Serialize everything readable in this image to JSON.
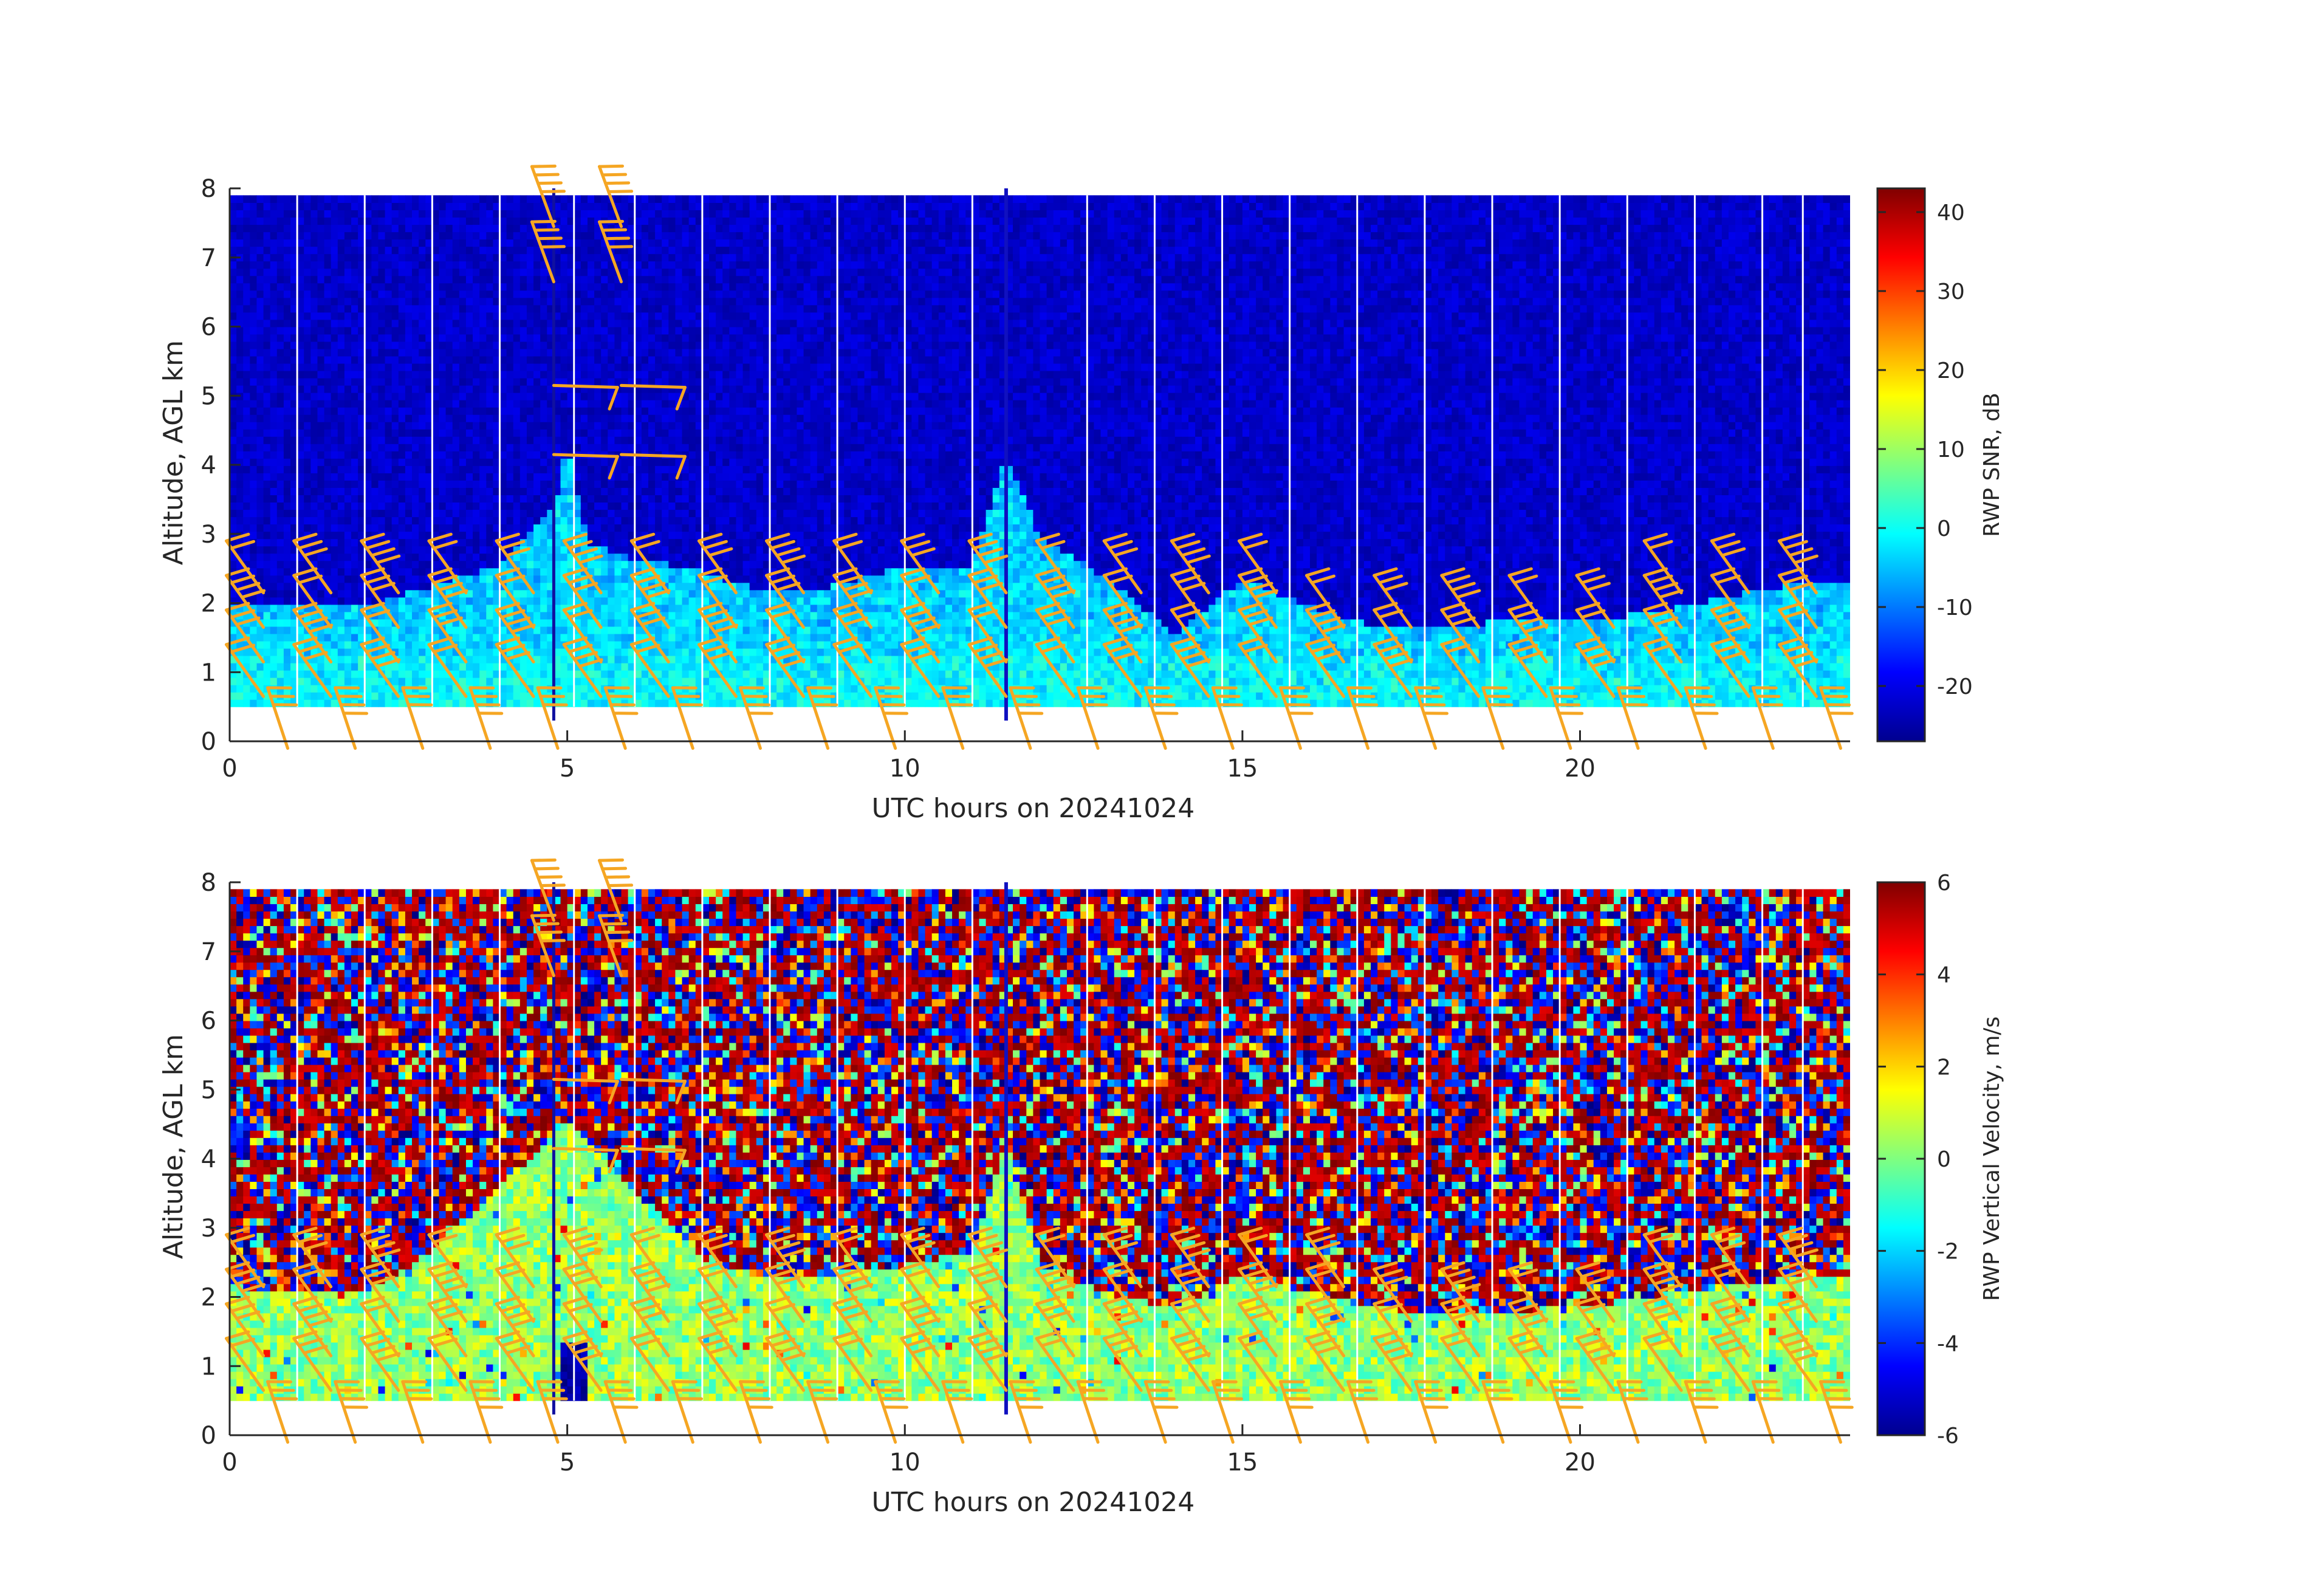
{
  "chart_data": [
    {
      "type": "heatmap",
      "xlabel": "UTC hours on 20241024",
      "ylabel": "Altitude, AGL km",
      "xlim": [
        0,
        24
      ],
      "ylim": [
        0,
        8
      ],
      "x_ticks": [
        0,
        5,
        10,
        15,
        20
      ],
      "y_ticks": [
        0,
        1,
        2,
        3,
        4,
        5,
        6,
        7,
        8
      ],
      "colorbar": {
        "label": "RWP SNR, dB",
        "range": [
          -27,
          43
        ],
        "ticks": [
          -20,
          -10,
          0,
          10,
          20,
          30,
          40
        ],
        "colormap": "jet"
      },
      "data_altitude_range_km": [
        0.5,
        7.9
      ],
      "background_snr_db": -22,
      "boundary_layer": {
        "snr_db": [
          -5,
          2
        ],
        "top_km": [
          [
            0,
            1.95
          ],
          [
            1,
            1.95
          ],
          [
            2,
            1.9
          ],
          [
            3,
            2.2
          ],
          [
            4,
            2.5
          ],
          [
            4.8,
            3.3
          ],
          [
            5,
            4.3
          ],
          [
            5.3,
            2.8
          ],
          [
            6,
            2.6
          ],
          [
            7,
            2.4
          ],
          [
            8,
            2.1
          ],
          [
            9,
            2.2
          ],
          [
            10,
            2.5
          ],
          [
            11,
            2.5
          ],
          [
            11.5,
            4.1
          ],
          [
            12,
            2.9
          ],
          [
            13,
            2.3
          ],
          [
            14,
            1.5
          ],
          [
            15,
            2.3
          ],
          [
            16,
            1.9
          ],
          [
            17,
            1.6
          ],
          [
            18,
            1.6
          ],
          [
            19,
            1.7
          ],
          [
            20,
            1.7
          ],
          [
            21,
            1.8
          ],
          [
            22,
            2.0
          ],
          [
            23,
            2.2
          ],
          [
            24,
            2.2
          ]
        ]
      },
      "gap_lines_utc_h": [
        1,
        2,
        3,
        4,
        5.1,
        6,
        7,
        8,
        9,
        10,
        11,
        12.7,
        13.7,
        14.7,
        15.7,
        16.7,
        17.7,
        18.7,
        19.7,
        20.7,
        21.7,
        22.7,
        23.3
      ],
      "spike_utc_h": 11.5,
      "wind_barbs": {
        "color": "#f5a623",
        "surface_altitude_km": 0.25,
        "profile_altitudes_km": [
          1.0,
          1.5,
          2.0,
          2.5
        ],
        "column_utc_h": [
          0.5,
          1.5,
          2.5,
          3.5,
          4.5,
          5.5,
          6.5,
          7.5,
          8.5,
          9.5,
          10.5,
          11.5,
          12.5,
          13.5,
          14.5,
          15.5,
          16.5,
          17.5,
          18.5,
          19.5,
          20.5,
          21.5,
          22.5,
          23.5
        ],
        "upper_columns_utc_h": [
          4.8,
          5.8
        ],
        "upper_altitudes_km": [
          4.5,
          5.5,
          7.0,
          7.8
        ]
      }
    },
    {
      "type": "heatmap",
      "xlabel": "UTC hours on 20241024",
      "ylabel": "Altitude, AGL km",
      "xlim": [
        0,
        24
      ],
      "ylim": [
        0,
        8
      ],
      "x_ticks": [
        0,
        5,
        10,
        15,
        20
      ],
      "y_ticks": [
        0,
        1,
        2,
        3,
        4,
        5,
        6,
        7,
        8
      ],
      "colorbar": {
        "label": "RWP Vertical Velocity, m/s",
        "range": [
          -6,
          6
        ],
        "ticks": [
          -6,
          -4,
          -2,
          0,
          2,
          4,
          6
        ],
        "colormap": "jet"
      },
      "data_altitude_range_km": [
        0.5,
        7.9
      ],
      "upper_noise": "random",
      "boundary_layer": {
        "velocity_m_s": [
          -1,
          1.5
        ],
        "top_km": [
          [
            0,
            2.0
          ],
          [
            2,
            2.0
          ],
          [
            3,
            2.6
          ],
          [
            5,
            4.5
          ],
          [
            6,
            3.5
          ],
          [
            7,
            2.5
          ],
          [
            8,
            2.2
          ],
          [
            10,
            2.4
          ],
          [
            11,
            2.6
          ],
          [
            11.5,
            4.2
          ],
          [
            12,
            2.4
          ],
          [
            13,
            2.0
          ],
          [
            14,
            1.8
          ],
          [
            15,
            2.3
          ],
          [
            16,
            2.0
          ],
          [
            17,
            1.8
          ],
          [
            18,
            1.7
          ],
          [
            20,
            1.8
          ],
          [
            22,
            2.1
          ],
          [
            24,
            2.3
          ]
        ]
      },
      "downdraft_utc_h": [
        4.9,
        5.3
      ],
      "downdraft_velocity_m_s": -6,
      "gap_lines_utc_h": [
        1,
        2,
        3,
        4,
        5.1,
        6,
        7,
        8,
        9,
        10,
        11,
        12.7,
        13.7,
        14.7,
        15.7,
        16.7,
        17.7,
        18.7,
        19.7,
        20.7,
        21.7,
        22.7,
        23.3
      ],
      "spike_utc_h": 11.5,
      "wind_barbs": {
        "color": "#f5a623",
        "surface_altitude_km": 0.25,
        "profile_altitudes_km": [
          1.0,
          1.5,
          2.0,
          2.5
        ],
        "column_utc_h": [
          0.5,
          1.5,
          2.5,
          3.5,
          4.5,
          5.5,
          6.5,
          7.5,
          8.5,
          9.5,
          10.5,
          11.5,
          12.5,
          13.5,
          14.5,
          15.5,
          16.5,
          17.5,
          18.5,
          19.5,
          20.5,
          21.5,
          22.5,
          23.5
        ],
        "upper_columns_utc_h": [
          4.8,
          5.8
        ],
        "upper_altitudes_km": [
          4.5,
          5.5,
          7.0,
          7.8
        ]
      }
    }
  ]
}
